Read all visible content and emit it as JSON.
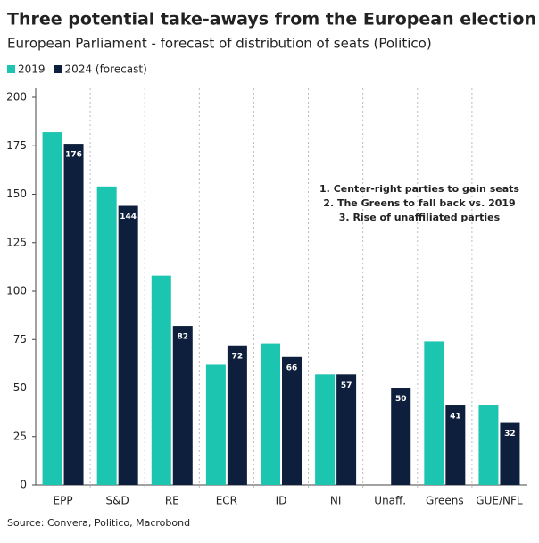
{
  "chart_data": {
    "type": "bar",
    "title": "Three potential take-aways from the European election",
    "subtitle": "European Parliament - forecast of distribution of seats (Politico)",
    "categories": [
      "EPP",
      "S&D",
      "RE",
      "ECR",
      "ID",
      "NI",
      "Unaff.",
      "Greens",
      "GUE/NFL"
    ],
    "series": [
      {
        "name": "2019",
        "color": "#1cc5b0",
        "values": [
          182,
          154,
          108,
          62,
          73,
          57,
          null,
          74,
          41
        ]
      },
      {
        "name": "2024 (forecast)",
        "color": "#0d1f3c",
        "values": [
          176,
          144,
          82,
          72,
          66,
          57,
          50,
          41,
          32
        ],
        "show_labels": true
      }
    ],
    "ylim": [
      0,
      200
    ],
    "yticks": [
      0,
      25,
      50,
      75,
      100,
      125,
      150,
      175,
      200
    ],
    "annotations": [
      "1. Center-right parties to gain seats",
      "2. The Greens to fall back vs. 2019",
      "3. Rise of unaffiliated parties"
    ],
    "source": "Source: Convera, Politico, Macrobond"
  }
}
